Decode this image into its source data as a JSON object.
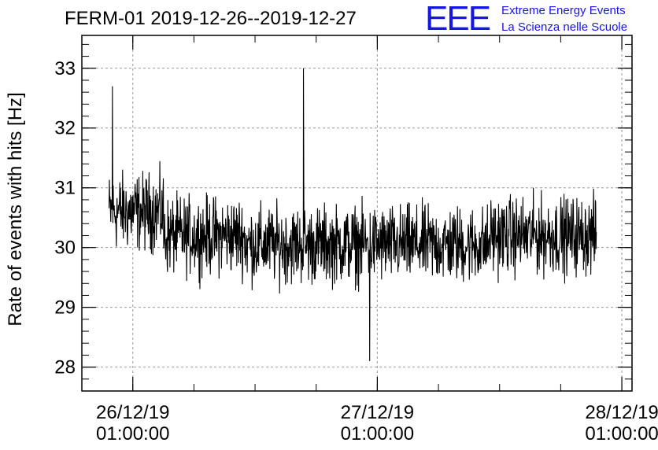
{
  "title": "FERM-01 2019-12-26--2019-12-27",
  "logo": {
    "mark": "EEE",
    "line1": "Extreme Energy Events",
    "line2": "La Scienza nelle Scuole",
    "color": "#1515e6"
  },
  "chart_data": {
    "type": "line",
    "ylabel": "Rate of events with hits [Hz]",
    "xlabel": "",
    "ylim": [
      27.6,
      33.55
    ],
    "xlim": [
      "2019-12-25 20:00:00",
      "2019-12-28 02:00:00"
    ],
    "yticks": [
      28,
      29,
      30,
      31,
      32,
      33
    ],
    "xticks": [
      {
        "date": "2019-12-26 01:00:00",
        "label_date": "26/12/19",
        "label_time": "01:00:00"
      },
      {
        "date": "2019-12-27 01:00:00",
        "label_date": "27/12/19",
        "label_time": "01:00:00"
      },
      {
        "date": "2019-12-28 01:00:00",
        "label_date": "28/12/19",
        "label_time": "01:00:00"
      }
    ],
    "grid": true,
    "line_color": "#000000",
    "series": [
      {
        "start": "2019-12-25 22:40:00",
        "end": "2019-12-27 22:30:00",
        "approx_mean_segments": [
          {
            "from": "2019-12-25 22:40:00",
            "to": "2019-12-26 04:00:00",
            "mean": 30.6
          },
          {
            "from": "2019-12-26 04:00:00",
            "to": "2019-12-26 12:00:00",
            "mean": 30.2
          },
          {
            "from": "2019-12-26 12:00:00",
            "to": "2019-12-27 12:00:00",
            "mean": 30.05
          },
          {
            "from": "2019-12-27 12:00:00",
            "to": "2019-12-27 22:30:00",
            "mean": 30.2
          }
        ],
        "approx_noise_half_range": 0.9,
        "notable_points": [
          {
            "x": "2019-12-25 23:00:00",
            "y": 32.7
          },
          {
            "x": "2019-12-26 17:45:00",
            "y": 33.0
          },
          {
            "x": "2019-12-27 00:15:00",
            "y": 28.1
          }
        ]
      }
    ]
  }
}
